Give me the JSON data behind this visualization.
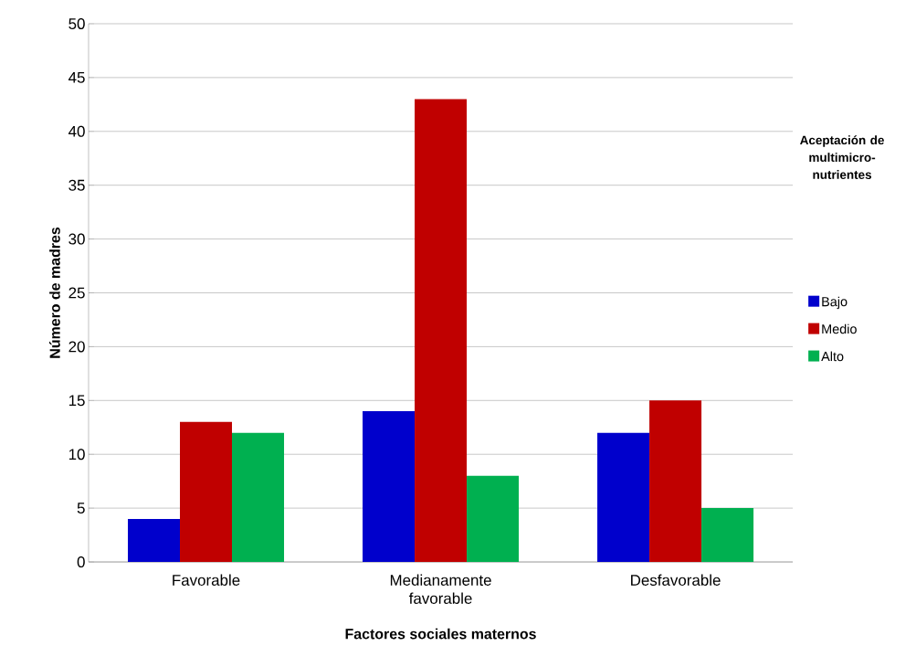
{
  "chart_data": {
    "type": "bar",
    "xlabel": "Factores sociales maternos",
    "ylabel": "Número de madres",
    "legend_title": "Aceptación de multimicro-nutrientes",
    "categories": [
      "Favorable",
      "Medianamente favorable",
      "Desfavorable"
    ],
    "series": [
      {
        "name": "Bajo",
        "color": "#0000cc",
        "values": [
          4,
          14,
          12
        ]
      },
      {
        "name": "Medio",
        "color": "#c00000",
        "values": [
          13,
          43,
          15
        ]
      },
      {
        "name": "Alto",
        "color": "#00b050",
        "values": [
          12,
          8,
          5
        ]
      }
    ],
    "ylim": [
      0,
      50
    ],
    "yticks": [
      0,
      5,
      10,
      15,
      20,
      25,
      30,
      35,
      40,
      45,
      50
    ],
    "grid": "y",
    "legend": "right"
  }
}
